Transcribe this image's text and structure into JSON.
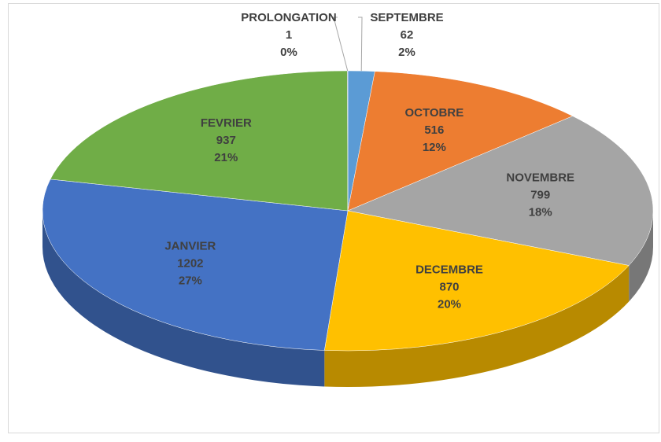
{
  "chart_data": {
    "type": "pie3d",
    "categories": [
      "SEPTEMBRE",
      "OCTOBRE",
      "NOVEMBRE",
      "DECEMBRE",
      "JANVIER",
      "FEVRIER",
      "PROLONGATION"
    ],
    "values": [
      62,
      516,
      799,
      870,
      1202,
      937,
      1
    ],
    "percent_labels": [
      "2%",
      "12%",
      "18%",
      "20%",
      "27%",
      "21%",
      "0%"
    ],
    "colors": [
      "#5b9bd5",
      "#ed7d31",
      "#a5a5a5",
      "#ffc000",
      "#4472c4",
      "#70ad47",
      "#264478"
    ]
  }
}
